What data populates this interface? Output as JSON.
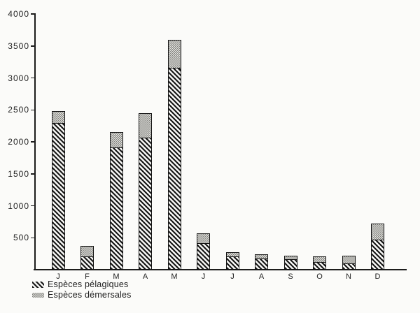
{
  "figure": {
    "paper_color": "#fbfbf9",
    "ink_color": "#1c1c1c",
    "demersal_fill": "#e6e6e2",
    "demersal_dot": "#80807c"
  },
  "chart_data": {
    "type": "bar",
    "stacked": true,
    "title": "",
    "xlabel": "",
    "ylabel": "",
    "categories": [
      "J",
      "F",
      "M",
      "A",
      "M",
      "J",
      "J",
      "A",
      "S",
      "O",
      "N",
      "D"
    ],
    "series": [
      {
        "name": "Espèces pélagiques",
        "pattern": "diagonal-hatch",
        "values": [
          2290,
          200,
          1900,
          2050,
          3150,
          410,
          200,
          160,
          150,
          105,
          90,
          465
        ]
      },
      {
        "name": "Espèces démersales",
        "pattern": "dot-screen",
        "values": [
          190,
          175,
          250,
          400,
          450,
          160,
          70,
          85,
          70,
          100,
          130,
          255
        ]
      }
    ],
    "totals": [
      2480,
      375,
      2150,
      2450,
      3600,
      570,
      270,
      245,
      220,
      205,
      220,
      720
    ],
    "ylim": [
      0,
      4000
    ],
    "yticks": [
      500,
      1000,
      1500,
      2000,
      2500,
      3000,
      3500,
      4000
    ],
    "grid": false,
    "legend_position": "bottom-left"
  }
}
